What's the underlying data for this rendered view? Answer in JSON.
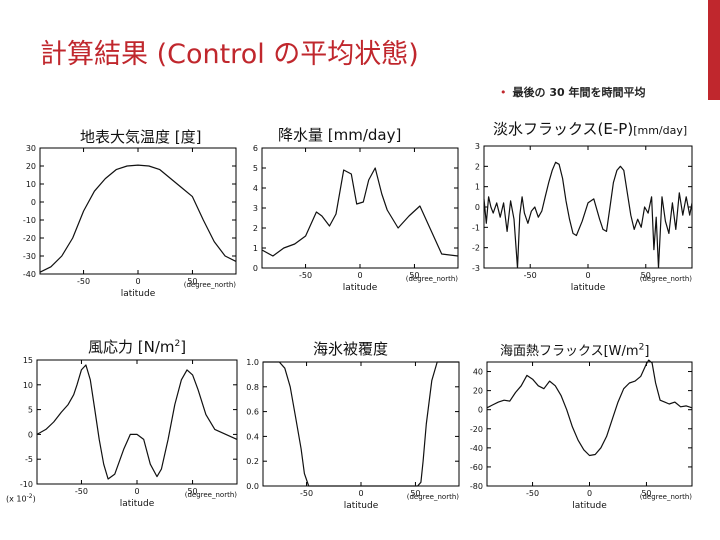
{
  "slide": {
    "title": "計算結果 (Control の平均状態)",
    "bullet": "最後の 30 年間を時間平均",
    "accent_color": "#c0272d",
    "footnote": "(x 10",
    "footnote_exp": "-2",
    "footnote_end": ")"
  },
  "panels": [
    {
      "id": "temp",
      "title": "地表大気温度 [度]",
      "chart_data": {
        "type": "line",
        "xlabel": "latitude",
        "xunit": "(degree_north)",
        "xlim": [
          -90,
          90
        ],
        "ylim": [
          -40,
          30
        ],
        "xticks": [
          -50,
          0,
          50
        ],
        "yticks": [
          30,
          20,
          10,
          0,
          -10,
          -20,
          -30,
          -40
        ],
        "x": [
          -90,
          -80,
          -70,
          -60,
          -50,
          -40,
          -30,
          -20,
          -10,
          0,
          10,
          20,
          30,
          40,
          50,
          60,
          70,
          80,
          90
        ],
        "y": [
          -39,
          -36,
          -30,
          -20,
          -5,
          6,
          13,
          18,
          20,
          20.5,
          20,
          18,
          13,
          8,
          3,
          -10,
          -22,
          -30,
          -33
        ]
      }
    },
    {
      "id": "precip",
      "title": "降水量 [mm/day]",
      "chart_data": {
        "type": "line",
        "xlabel": "latitude",
        "xunit": "(degree_north)",
        "xlim": [
          -90,
          90
        ],
        "ylim": [
          0,
          6
        ],
        "xticks": [
          -50,
          0,
          50
        ],
        "yticks": [
          6,
          5,
          4,
          3,
          2,
          1,
          0
        ],
        "x": [
          -90,
          -80,
          -70,
          -60,
          -50,
          -40,
          -35,
          -28,
          -22,
          -15,
          -8,
          -3,
          3,
          8,
          14,
          20,
          25,
          35,
          45,
          55,
          65,
          75,
          90
        ],
        "y": [
          0.9,
          0.6,
          1.0,
          1.2,
          1.6,
          2.8,
          2.6,
          2.1,
          2.7,
          4.9,
          4.7,
          3.2,
          3.3,
          4.4,
          5.0,
          3.7,
          2.9,
          2.0,
          2.6,
          3.1,
          1.9,
          0.7,
          0.6
        ]
      }
    },
    {
      "id": "emp",
      "title": "淡水フラックス(E-P)",
      "unit": "[mm/day]",
      "chart_data": {
        "type": "line",
        "xlabel": "latitude",
        "xunit": "(degree_north)",
        "xlim": [
          -90,
          90
        ],
        "ylim": [
          -3,
          3
        ],
        "xticks": [
          -50,
          0,
          50
        ],
        "yticks": [
          3,
          2,
          1,
          0,
          -1,
          -2,
          -3
        ],
        "x": [
          -90,
          -88,
          -86,
          -84,
          -82,
          -79,
          -76,
          -73,
          -70,
          -67,
          -64,
          -61,
          -59,
          -57,
          -55,
          -52,
          -49,
          -46,
          -43,
          -40,
          -37,
          -34,
          -31,
          -28,
          -25,
          -22,
          -19,
          -16,
          -13,
          -10,
          -5,
          0,
          5,
          10,
          13,
          16,
          19,
          22,
          25,
          28,
          31,
          34,
          37,
          40,
          43,
          46,
          49,
          52,
          55,
          57,
          59,
          61,
          64,
          67,
          70,
          73,
          76,
          79,
          82,
          85,
          88,
          90
        ],
        "y": [
          0.4,
          -0.8,
          0.5,
          0.0,
          -0.3,
          0.2,
          -0.5,
          0.2,
          -1.2,
          0.3,
          -0.6,
          -3.0,
          -0.4,
          0.5,
          -0.3,
          -0.8,
          -0.2,
          0.0,
          -0.5,
          -0.2,
          0.5,
          1.2,
          1.8,
          2.2,
          2.1,
          1.4,
          0.3,
          -0.6,
          -1.3,
          -1.4,
          -0.7,
          0.2,
          0.4,
          -0.6,
          -1.1,
          -1.2,
          0.0,
          1.2,
          1.8,
          2.0,
          1.8,
          0.7,
          -0.4,
          -1.1,
          -0.6,
          -1.0,
          0.0,
          -0.3,
          0.5,
          -2.1,
          -0.5,
          -3.0,
          0.5,
          -0.7,
          -1.3,
          0.2,
          -1.1,
          0.7,
          -0.4,
          0.5,
          -0.4,
          0.2
        ]
      }
    },
    {
      "id": "wind",
      "title": "風応力 [N/m",
      "title_exp": "2",
      "title_end": "]",
      "chart_data": {
        "type": "line",
        "xlabel": "latitude",
        "xunit": "(degree_north)",
        "xlim": [
          -90,
          90
        ],
        "ylim": [
          -10,
          15
        ],
        "xticks": [
          -50,
          0,
          50
        ],
        "yticks": [
          15,
          10,
          5,
          0,
          -5,
          -10
        ],
        "x": [
          -90,
          -82,
          -75,
          -68,
          -62,
          -57,
          -54,
          -50,
          -46,
          -42,
          -38,
          -34,
          -30,
          -26,
          -20,
          -12,
          -6,
          0,
          6,
          12,
          18,
          22,
          28,
          34,
          40,
          45,
          50,
          55,
          62,
          70,
          80,
          90
        ],
        "y": [
          0,
          1,
          2.5,
          4.5,
          6,
          8,
          10,
          13,
          14,
          11,
          5,
          -1,
          -6,
          -9,
          -8,
          -3,
          0,
          0,
          -1,
          -6,
          -8.5,
          -7,
          -1,
          6,
          11,
          13,
          12,
          9,
          4,
          1,
          0,
          -1
        ]
      }
    },
    {
      "id": "seaice",
      "title": "海氷被覆度",
      "chart_data": {
        "type": "line",
        "xlabel": "latitude",
        "xunit": "(degree_north)",
        "xlim": [
          -90,
          90
        ],
        "ylim": [
          0.0,
          1.0
        ],
        "xticks": [
          -50,
          0,
          50
        ],
        "yticks": [
          1.0,
          0.8,
          0.6,
          0.4,
          0.2,
          0.0
        ],
        "x": [
          -90,
          -75,
          -70,
          -65,
          -60,
          -55,
          -52,
          -48,
          -40,
          0,
          40,
          52,
          55,
          57,
          60,
          65,
          70,
          75,
          90
        ],
        "y": [
          1.0,
          1.0,
          0.95,
          0.8,
          0.55,
          0.3,
          0.1,
          0.0,
          0.0,
          0.0,
          0.0,
          0.0,
          0.03,
          0.2,
          0.5,
          0.85,
          1.0,
          1.0,
          1.0
        ]
      }
    },
    {
      "id": "heat",
      "title": "海面熱フラックス[W/m",
      "title_exp": "2",
      "title_end": "]",
      "chart_data": {
        "type": "line",
        "xlabel": "latitude",
        "xunit": "(degree_north)",
        "xlim": [
          -90,
          90
        ],
        "ylim": [
          -80,
          50
        ],
        "xticks": [
          -50,
          0,
          50
        ],
        "yticks": [
          40,
          20,
          0,
          -20,
          -40,
          -60,
          -80
        ],
        "x": [
          -90,
          -85,
          -80,
          -75,
          -70,
          -65,
          -60,
          -55,
          -50,
          -45,
          -40,
          -35,
          -30,
          -25,
          -20,
          -15,
          -10,
          -5,
          0,
          5,
          10,
          15,
          20,
          25,
          30,
          35,
          40,
          45,
          50,
          52,
          55,
          58,
          62,
          66,
          70,
          75,
          80,
          85,
          90
        ],
        "y": [
          2,
          5,
          8,
          10,
          9,
          18,
          25,
          36,
          32,
          25,
          22,
          30,
          25,
          15,
          0,
          -18,
          -32,
          -42,
          -48,
          -47,
          -40,
          -28,
          -10,
          8,
          22,
          28,
          30,
          35,
          48,
          52,
          49,
          28,
          10,
          8,
          6,
          8,
          3,
          4,
          2
        ]
      }
    }
  ]
}
